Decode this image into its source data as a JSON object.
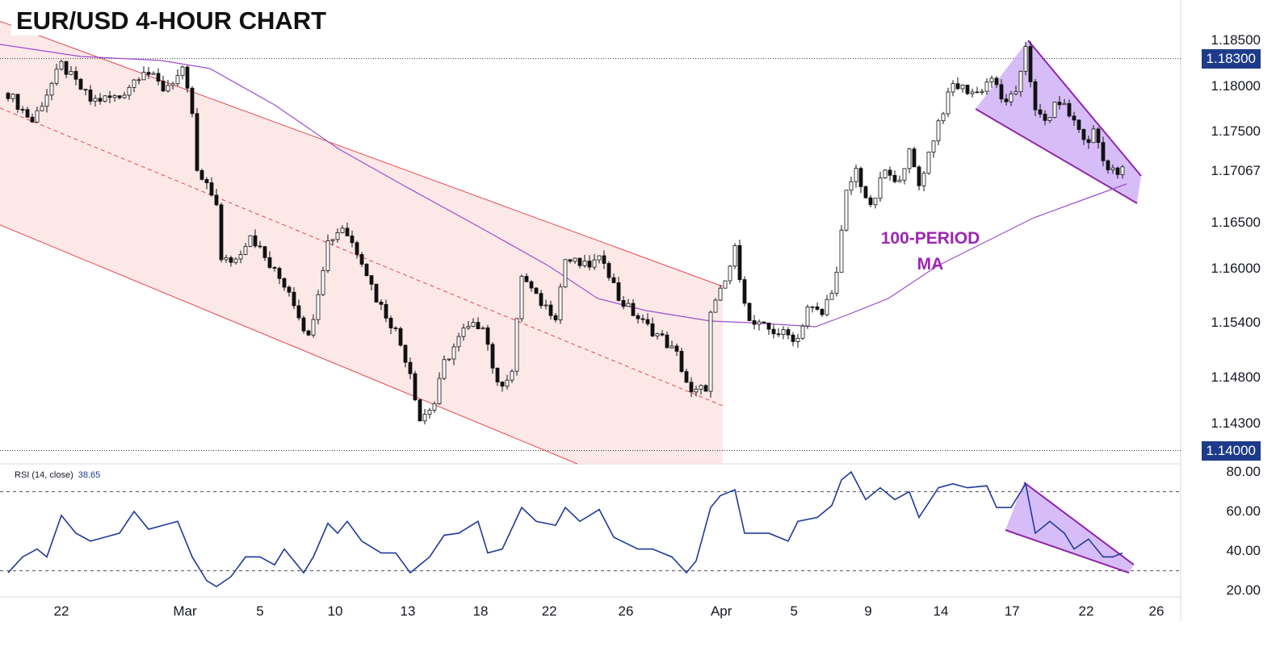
{
  "title": "EUR/USD 4-HOUR CHART",
  "annotation": {
    "line1": "100-PERIOD",
    "line2": "MA"
  },
  "colors": {
    "channel_fill": "#fde4e4",
    "channel_line": "#e8474c",
    "ma": "#9c4dcc",
    "wedge_fill": "#c9a7f5",
    "wedge_line": "#8e24aa",
    "rsi": "#1e3a9a",
    "tag": "#1e3a8a"
  },
  "chart_data": [
    {
      "type": "candlestick",
      "title": "EUR/USD 4-HOUR CHART",
      "ylim": [
        1.1375,
        1.188
      ],
      "y_ticks": [
        "1.18500",
        "1.18000",
        "1.17500",
        "1.17067",
        "1.16500",
        "1.16000",
        "1.15400",
        "1.14800",
        "1.14300"
      ],
      "price_tags": [
        "1.18300",
        "1.14000"
      ],
      "horizontal_levels": [
        1.183,
        1.14
      ],
      "x_ticks": [
        [
          "22",
          11
        ],
        [
          "Mar",
          36.5
        ],
        [
          "5",
          52
        ],
        [
          "10",
          67.5
        ],
        [
          "13",
          82.5
        ],
        [
          "18",
          97.5
        ],
        [
          "22",
          111.7
        ],
        [
          "26",
          127.5
        ],
        [
          "Apr",
          147.2
        ],
        [
          "5",
          162.2
        ],
        [
          "9",
          177.5
        ],
        [
          "14",
          192.5
        ],
        [
          "17",
          207.2
        ],
        [
          "22",
          222.5
        ],
        [
          "26",
          237
        ]
      ],
      "close_path": [
        [
          0,
          1.1792
        ],
        [
          5,
          1.1761
        ],
        [
          11,
          1.1823
        ],
        [
          17,
          1.1784
        ],
        [
          23,
          1.1788
        ],
        [
          28,
          1.1819
        ],
        [
          32,
          1.1797
        ],
        [
          36,
          1.1815
        ],
        [
          38,
          1.177
        ],
        [
          39,
          1.1704
        ],
        [
          43,
          1.1673
        ],
        [
          44,
          1.1607
        ],
        [
          47,
          1.161
        ],
        [
          50,
          1.1638
        ],
        [
          54,
          1.1602
        ],
        [
          58,
          1.1576
        ],
        [
          62,
          1.1523
        ],
        [
          64,
          1.1576
        ],
        [
          66,
          1.1629
        ],
        [
          69,
          1.1646
        ],
        [
          73,
          1.161
        ],
        [
          76,
          1.1567
        ],
        [
          80,
          1.1531
        ],
        [
          83,
          1.1487
        ],
        [
          85,
          1.1434
        ],
        [
          88,
          1.1452
        ],
        [
          90,
          1.1496
        ],
        [
          94,
          1.1531
        ],
        [
          98,
          1.154
        ],
        [
          101,
          1.147
        ],
        [
          104,
          1.1487
        ],
        [
          106,
          1.1593
        ],
        [
          109,
          1.1567
        ],
        [
          113,
          1.1549
        ],
        [
          115,
          1.161
        ],
        [
          119,
          1.1602
        ],
        [
          123,
          1.161
        ],
        [
          126,
          1.1567
        ],
        [
          131,
          1.154
        ],
        [
          135,
          1.1523
        ],
        [
          138,
          1.1505
        ],
        [
          141,
          1.1461
        ],
        [
          144,
          1.147
        ],
        [
          145,
          1.1549
        ],
        [
          148,
          1.1585
        ],
        [
          150,
          1.162
        ],
        [
          153,
          1.154
        ],
        [
          158,
          1.1531
        ],
        [
          163,
          1.1523
        ],
        [
          165,
          1.1558
        ],
        [
          168,
          1.1549
        ],
        [
          171,
          1.1593
        ],
        [
          173,
          1.1682
        ],
        [
          175,
          1.1708
        ],
        [
          178,
          1.1664
        ],
        [
          181,
          1.1708
        ],
        [
          183,
          1.1691
        ],
        [
          186,
          1.1726
        ],
        [
          188,
          1.1691
        ],
        [
          192,
          1.1761
        ],
        [
          195,
          1.1801
        ],
        [
          200,
          1.1792
        ],
        [
          203,
          1.181
        ],
        [
          205,
          1.1784
        ],
        [
          208,
          1.1788
        ],
        [
          210,
          1.1846
        ],
        [
          212,
          1.177
        ],
        [
          214,
          1.1761
        ],
        [
          217,
          1.1784
        ],
        [
          220,
          1.1761
        ],
        [
          223,
          1.1735
        ],
        [
          224,
          1.1753
        ],
        [
          227,
          1.1708
        ],
        [
          229,
          1.1704
        ],
        [
          230,
          1.1707
        ]
      ],
      "ma_label": "100-PERIOD MA"
    },
    {
      "type": "line",
      "title": "RSI (14, close)",
      "last_value": "38.65",
      "ylim": [
        15,
        85
      ],
      "y_ticks": [
        "80.00",
        "60.00",
        "40.00",
        "20.00"
      ],
      "bands": [
        70,
        30
      ],
      "values": [
        [
          0,
          29
        ],
        [
          3,
          37
        ],
        [
          6,
          41
        ],
        [
          8,
          37
        ],
        [
          11,
          58
        ],
        [
          14,
          49
        ],
        [
          17,
          45
        ],
        [
          20,
          47
        ],
        [
          23,
          49
        ],
        [
          26,
          60
        ],
        [
          29,
          51
        ],
        [
          32,
          53
        ],
        [
          35,
          55
        ],
        [
          38,
          37
        ],
        [
          41,
          25
        ],
        [
          43,
          22
        ],
        [
          46,
          27
        ],
        [
          49,
          37
        ],
        [
          52,
          37
        ],
        [
          55,
          33
        ],
        [
          57,
          41
        ],
        [
          61,
          29
        ],
        [
          63,
          37
        ],
        [
          66,
          54
        ],
        [
          68,
          49
        ],
        [
          70,
          55
        ],
        [
          73,
          45
        ],
        [
          77,
          39
        ],
        [
          80,
          39
        ],
        [
          83,
          29
        ],
        [
          87,
          37
        ],
        [
          90,
          48
        ],
        [
          93,
          49
        ],
        [
          97,
          55
        ],
        [
          99,
          39
        ],
        [
          102,
          41
        ],
        [
          106,
          62
        ],
        [
          109,
          55
        ],
        [
          113,
          53
        ],
        [
          115,
          62
        ],
        [
          118,
          55
        ],
        [
          122,
          61
        ],
        [
          125,
          47
        ],
        [
          130,
          41
        ],
        [
          133,
          41
        ],
        [
          137,
          37
        ],
        [
          140,
          29
        ],
        [
          142,
          35
        ],
        [
          145,
          62
        ],
        [
          147,
          68
        ],
        [
          150,
          71
        ],
        [
          152,
          49
        ],
        [
          157,
          49
        ],
        [
          161,
          45
        ],
        [
          163,
          55
        ],
        [
          167,
          57
        ],
        [
          170,
          63
        ],
        [
          172,
          76
        ],
        [
          174,
          80
        ],
        [
          177,
          66
        ],
        [
          180,
          72
        ],
        [
          183,
          66
        ],
        [
          186,
          70
        ],
        [
          188,
          57
        ],
        [
          192,
          72
        ],
        [
          195,
          74
        ],
        [
          198,
          72
        ],
        [
          202,
          73
        ],
        [
          204,
          62
        ],
        [
          207,
          62
        ],
        [
          210,
          74
        ],
        [
          212,
          49
        ],
        [
          215,
          55
        ],
        [
          218,
          49
        ],
        [
          220,
          41
        ],
        [
          223,
          46
        ],
        [
          226,
          37
        ],
        [
          228,
          37
        ],
        [
          230,
          39
        ]
      ]
    }
  ]
}
